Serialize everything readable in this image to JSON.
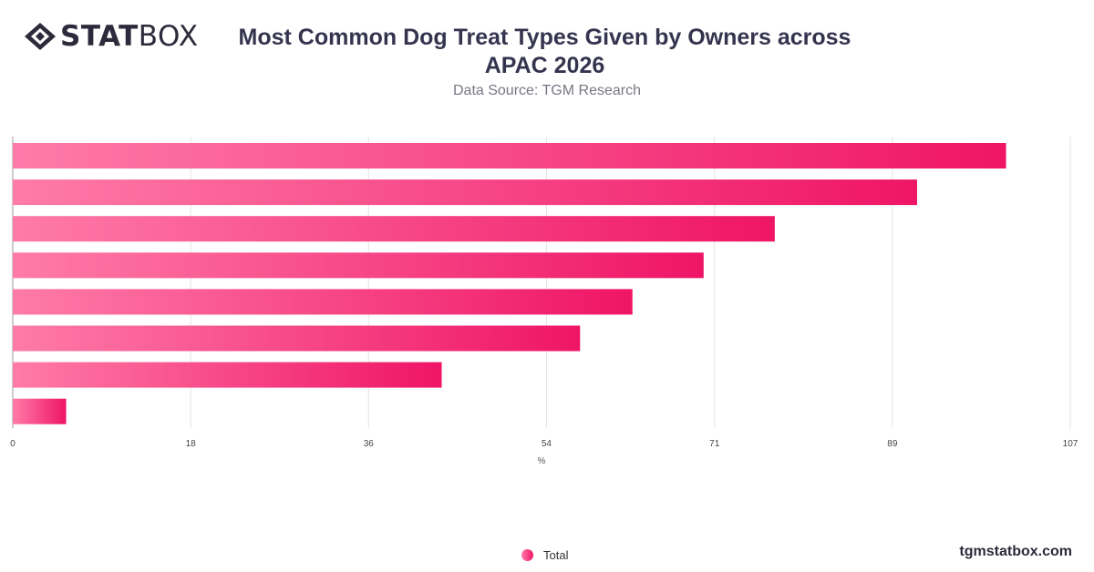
{
  "brand": {
    "logo_bold": "STAT",
    "logo_light": "BOX",
    "site": "tgmstatbox.com"
  },
  "colors": {
    "bar_start": "#ff7ba8",
    "bar_end": "#ef1566",
    "grid": "#e3e3e3",
    "text": "#35344f"
  },
  "chart_data": {
    "type": "bar",
    "orientation": "horizontal",
    "title": "Most Common Dog Treat Types Given by Owners across APAC 2026",
    "subtitle": "Data Source: TGM Research",
    "xlabel": "%",
    "ylabel": "",
    "xlim": [
      0,
      107
    ],
    "xticks": [
      0,
      18,
      36,
      54,
      71,
      89,
      107
    ],
    "categories": [
      "",
      "",
      "",
      "",
      "",
      "",
      "",
      ""
    ],
    "series": [
      {
        "name": "Total",
        "values": [
          100.5,
          91.5,
          77.1,
          69.9,
          62.7,
          57.4,
          43.4,
          5.4
        ]
      }
    ],
    "grid": true,
    "legend": "bottom-center"
  }
}
